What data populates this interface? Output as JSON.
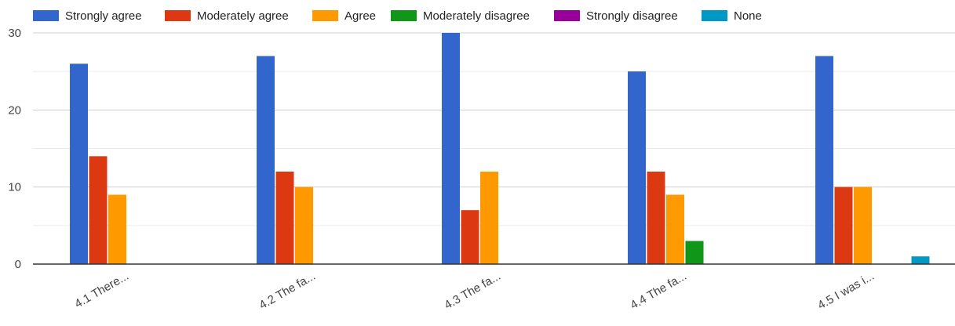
{
  "chart_data": {
    "type": "bar",
    "categories": [
      "4.1 There...",
      "4.2 The fa...",
      "4.3 The fa...",
      "4.4 The fa...",
      "4.5 I was i..."
    ],
    "series": [
      {
        "name": "Strongly agree",
        "color": "#3366cc",
        "values": [
          26,
          27,
          30,
          25,
          27
        ]
      },
      {
        "name": "Moderately agree",
        "color": "#dc3912",
        "values": [
          14,
          12,
          7,
          12,
          10
        ]
      },
      {
        "name": "Agree",
        "color": "#ff9900",
        "values": [
          9,
          10,
          12,
          9,
          10
        ]
      },
      {
        "name": "Moderately disagree",
        "color": "#109618",
        "values": [
          0,
          0,
          0,
          3,
          0
        ]
      },
      {
        "name": "Strongly disagree",
        "color": "#990099",
        "values": [
          0,
          0,
          0,
          0,
          0
        ]
      },
      {
        "name": "None",
        "color": "#0099c6",
        "values": [
          0,
          0,
          0,
          0,
          1
        ]
      }
    ],
    "yticks": [
      "0",
      "10",
      "20",
      "30"
    ],
    "ylim": [
      0,
      30
    ],
    "grid": true,
    "legend_position": "top"
  }
}
